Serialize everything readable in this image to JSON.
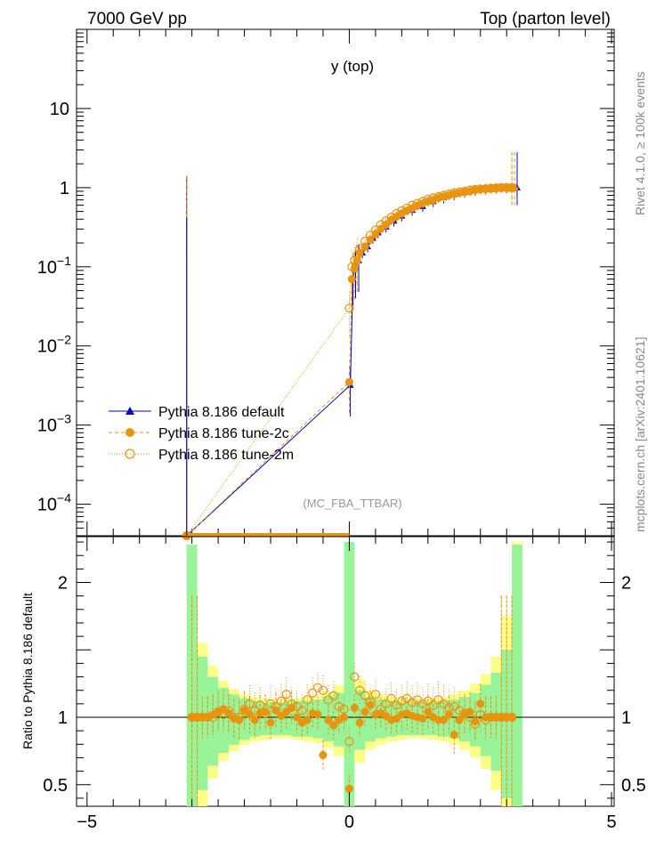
{
  "header": {
    "left": "7000 GeV pp",
    "right": "Top (parton level)"
  },
  "side_text": {
    "rivet": "Rivet 4.1.0, ≥ 100k events",
    "mcplots": "mcplots.cern.ch [arXiv:2401.10621]"
  },
  "chart_data": [
    {
      "type": "line",
      "title": "y (top)",
      "watermark": "(MC_FBA_TTBAR)",
      "xlabel": "",
      "ylabel": "",
      "yscale": "log",
      "xlim": [
        -5.2,
        5.05
      ],
      "ylim": [
        4e-05,
        100
      ],
      "xticks": [
        {
          "v": -5,
          "label": "−5"
        },
        {
          "v": 0,
          "label": "0"
        },
        {
          "v": 5,
          "label": "5"
        }
      ],
      "yticks": [
        {
          "v": 0.0001,
          "base": "10",
          "exp": "−4"
        },
        {
          "v": 0.001,
          "base": "10",
          "exp": "−3"
        },
        {
          "v": 0.01,
          "base": "10",
          "exp": "−2"
        },
        {
          "v": 0.1,
          "base": "10",
          "exp": "−1"
        },
        {
          "v": 1,
          "base": "1",
          "exp": ""
        },
        {
          "v": 10,
          "base": "10",
          "exp": ""
        }
      ],
      "legend": [
        {
          "label": "Pythia 8.186 default",
          "color": "#0000cc",
          "marker": "triangle",
          "dash": "solid"
        },
        {
          "label": "Pythia 8.186 tune-2c",
          "color": "#e8940f",
          "marker": "circle",
          "dash": "dashed"
        },
        {
          "label": "Pythia 8.186 tune-2m",
          "color": "#e8940f",
          "marker": "open-circle",
          "dash": "dotted"
        }
      ],
      "series": [
        {
          "name": "Pythia 8.186 default",
          "x": [
            -3.1,
            0.02,
            0.07,
            0.12,
            0.18,
            0.25,
            0.35,
            0.45,
            0.55,
            0.7,
            0.85,
            1.0,
            1.2,
            1.4,
            1.6,
            1.8,
            2.0,
            2.2,
            2.4,
            2.6,
            2.8,
            3.0,
            3.2
          ],
          "y": [
            4e-05,
            0.0032,
            0.07,
            0.1,
            0.12,
            0.15,
            0.18,
            0.23,
            0.27,
            0.32,
            0.38,
            0.44,
            0.52,
            0.58,
            0.67,
            0.75,
            0.82,
            0.88,
            0.93,
            0.96,
            0.99,
            1.0,
            1.0
          ]
        },
        {
          "name": "Pythia 8.186 tune-2c",
          "x": [
            -3.1,
            0.0,
            0.05,
            0.1,
            0.15,
            0.2,
            0.3,
            0.4,
            0.5,
            0.6,
            0.7,
            0.8,
            0.9,
            1.0,
            1.1,
            1.2,
            1.3,
            1.4,
            1.5,
            1.6,
            1.7,
            1.8,
            1.9,
            2.0,
            2.1,
            2.2,
            2.3,
            2.4,
            2.5,
            2.6,
            2.7,
            2.8,
            2.9,
            3.0,
            3.1,
            3.15
          ],
          "y": [
            4e-05,
            0.0035,
            0.07,
            0.095,
            0.12,
            0.15,
            0.18,
            0.22,
            0.26,
            0.3,
            0.34,
            0.39,
            0.43,
            0.47,
            0.51,
            0.55,
            0.59,
            0.63,
            0.67,
            0.7,
            0.74,
            0.77,
            0.8,
            0.83,
            0.86,
            0.88,
            0.9,
            0.93,
            0.95,
            0.96,
            0.97,
            0.98,
            0.99,
            1.0,
            1.0,
            1.0
          ]
        },
        {
          "name": "Pythia 8.186 tune-2m",
          "x": [
            -3.1,
            0.0,
            0.05,
            0.1,
            0.15,
            0.2,
            0.3,
            0.4,
            0.5,
            0.6,
            0.7,
            0.8,
            0.9,
            1.0,
            1.1,
            1.2,
            1.3,
            1.4,
            1.5,
            1.6,
            1.7,
            1.8,
            1.9,
            2.0,
            2.1,
            2.2,
            2.3,
            2.4,
            2.5,
            2.6,
            2.7,
            2.8,
            2.9,
            3.0,
            3.1
          ],
          "y": [
            4e-05,
            0.03,
            0.1,
            0.12,
            0.14,
            0.17,
            0.21,
            0.25,
            0.29,
            0.34,
            0.38,
            0.42,
            0.47,
            0.51,
            0.55,
            0.6,
            0.63,
            0.67,
            0.71,
            0.74,
            0.77,
            0.8,
            0.83,
            0.86,
            0.88,
            0.9,
            0.93,
            0.95,
            0.96,
            0.97,
            0.98,
            0.99,
            1.0,
            1.0,
            1.0
          ]
        }
      ]
    },
    {
      "type": "line",
      "title": "",
      "xlabel": "",
      "ylabel": "Ratio to Pythia 8.186 default",
      "xlim": [
        -5.2,
        5.05
      ],
      "ylim": [
        0.34,
        2.34
      ],
      "reference": 1,
      "yticks": [
        {
          "v": 0.5,
          "label": "0.5"
        },
        {
          "v": 1,
          "label": "1"
        },
        {
          "v": 2,
          "label": "2"
        }
      ],
      "band_x": [
        -3.1,
        -2.9,
        -2.7,
        -2.5,
        -2.3,
        -2.1,
        -1.9,
        -1.7,
        -1.5,
        -1.3,
        -1.1,
        -0.9,
        -0.7,
        -0.5,
        -0.3,
        -0.1,
        0.1,
        0.3,
        0.5,
        0.7,
        0.9,
        1.1,
        1.3,
        1.5,
        1.7,
        1.9,
        2.1,
        2.3,
        2.5,
        2.7,
        2.9,
        3.1,
        3.3
      ],
      "band_inner": [
        2.28,
        1.45,
        1.3,
        1.22,
        1.17,
        1.14,
        1.12,
        1.11,
        1.11,
        1.11,
        1.12,
        1.12,
        1.13,
        1.15,
        1.18,
        2.3,
        1.2,
        1.15,
        1.13,
        1.12,
        1.11,
        1.11,
        1.11,
        1.11,
        1.12,
        1.13,
        1.15,
        1.18,
        1.24,
        1.33,
        1.5,
        2.28
      ],
      "band_outer": [
        1.85,
        1.55,
        1.38,
        1.27,
        1.21,
        1.17,
        1.15,
        1.14,
        1.13,
        1.13,
        1.14,
        1.15,
        1.16,
        1.19,
        1.24,
        2.3,
        1.28,
        1.2,
        1.17,
        1.15,
        1.14,
        1.13,
        1.13,
        1.14,
        1.15,
        1.17,
        1.2,
        1.25,
        1.32,
        1.45,
        1.75,
        2.3
      ],
      "series": [
        {
          "name": "Pythia 8.186 tune-2c",
          "x": [
            -3.0,
            -2.9,
            -2.8,
            -2.7,
            -2.6,
            -2.5,
            -2.4,
            -2.3,
            -2.2,
            -2.1,
            -2.0,
            -1.9,
            -1.8,
            -1.7,
            -1.6,
            -1.5,
            -1.4,
            -1.3,
            -1.2,
            -1.1,
            -1.0,
            -0.9,
            -0.8,
            -0.7,
            -0.6,
            -0.5,
            -0.4,
            -0.3,
            -0.2,
            -0.1,
            0.0,
            0.1,
            0.2,
            0.3,
            0.4,
            0.5,
            0.6,
            0.7,
            0.8,
            0.9,
            1.0,
            1.1,
            1.2,
            1.3,
            1.4,
            1.5,
            1.6,
            1.7,
            1.8,
            1.9,
            2.0,
            2.1,
            2.2,
            2.3,
            2.4,
            2.5,
            2.6,
            2.7,
            2.8,
            2.9,
            3.0,
            3.1
          ],
          "y": [
            1.0,
            1.0,
            1.0,
            1.0,
            1.02,
            1.04,
            1.06,
            1.03,
            0.99,
            0.98,
            1.05,
            1.02,
            0.98,
            1.03,
            1.04,
            0.96,
            1.05,
            1.01,
            1.04,
            1.07,
            1.0,
            0.96,
            0.98,
            1.03,
            1.02,
            0.72,
            0.98,
            0.94,
            0.98,
            1.0,
            0.47,
            1.07,
            0.96,
            1.04,
            1.09,
            1.02,
            1.03,
            1.01,
            0.98,
            0.99,
            1.02,
            1.03,
            1.01,
            1.0,
            0.99,
            1.04,
            1.0,
            0.98,
            0.98,
            1.02,
            0.87,
            0.98,
            1.02,
            1.04,
            0.97,
            1.1,
            1.0,
            1.0,
            1.0,
            1.0,
            1.0,
            1.0
          ]
        },
        {
          "name": "Pythia 8.186 tune-2m",
          "x": [
            -3.0,
            -2.9,
            -2.8,
            -2.7,
            -2.6,
            -2.5,
            -2.4,
            -2.3,
            -2.2,
            -2.1,
            -2.0,
            -1.9,
            -1.8,
            -1.7,
            -1.6,
            -1.5,
            -1.4,
            -1.3,
            -1.2,
            -1.1,
            -1.0,
            -0.9,
            -0.8,
            -0.7,
            -0.6,
            -0.5,
            -0.4,
            -0.3,
            -0.2,
            -0.1,
            0.0,
            0.1,
            0.2,
            0.3,
            0.4,
            0.5,
            0.6,
            0.7,
            0.8,
            0.9,
            1.0,
            1.1,
            1.2,
            1.3,
            1.4,
            1.5,
            1.6,
            1.7,
            1.8,
            1.9,
            2.0,
            2.1,
            2.2,
            2.3,
            2.4,
            2.5,
            2.6,
            2.7,
            2.8,
            2.9,
            3.0,
            3.1
          ],
          "y": [
            1.0,
            1.0,
            1.0,
            1.0,
            1.0,
            1.04,
            1.02,
            1.05,
            1.0,
            1.0,
            1.06,
            1.1,
            1.05,
            1.09,
            1.03,
            1.1,
            1.08,
            1.12,
            1.17,
            1.1,
            1.08,
            1.05,
            1.13,
            1.18,
            1.22,
            1.2,
            1.13,
            1.16,
            1.08,
            1.06,
            0.82,
            1.3,
            1.2,
            1.16,
            1.11,
            1.17,
            1.06,
            1.1,
            1.14,
            1.09,
            1.12,
            1.14,
            1.11,
            1.13,
            1.1,
            1.12,
            1.09,
            1.13,
            1.1,
            1.07,
            1.08,
            1.05,
            1.03,
            1.0,
            0.95,
            1.02,
            0.98,
            1.0,
            1.0,
            1.0,
            1.0,
            1.0
          ]
        }
      ]
    }
  ]
}
